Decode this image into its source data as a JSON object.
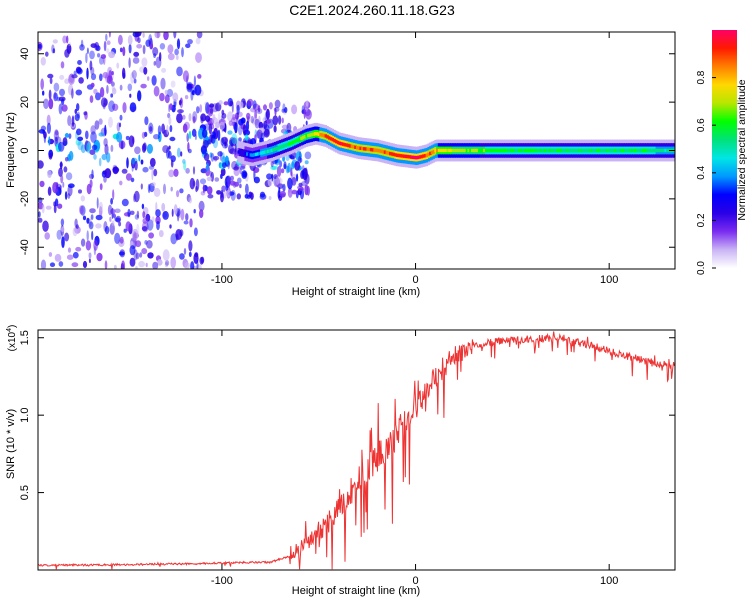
{
  "title": "C2E1.2024.260.11.18.G23",
  "chart_data": [
    {
      "type": "heatmap",
      "xlabel": "Height of straight line (km)",
      "ylabel": "Frequency (Hz)",
      "xlim": [
        -195,
        134
      ],
      "ylim": [
        -49,
        49
      ],
      "xticks": [
        -100,
        0,
        100
      ],
      "yticks": [
        -40,
        -20,
        0,
        20,
        40
      ],
      "ytick_labels": [
        "-40",
        "-20",
        "0",
        "20",
        "40"
      ],
      "xtick_labels": [
        "-100",
        "0",
        "100"
      ],
      "colorbar": {
        "label": "Normalized spectral amplitude",
        "range": [
          0.0,
          1.0
        ],
        "ticks": [
          "0.0",
          "0.2",
          "0.4",
          "0.6",
          "0.8"
        ],
        "colormap": [
          "#ffffff",
          "#c9b3f5",
          "#7a2cf0",
          "#2a00e6",
          "#0000ff",
          "#0099ff",
          "#00e5e5",
          "#00e27a",
          "#00ff00",
          "#b8e600",
          "#ffd800",
          "#ff7f00",
          "#ff1a00",
          "#ff0066"
        ]
      },
      "trace": {
        "x": [
          -195,
          -150,
          -120,
          -95,
          -85,
          -75,
          -65,
          -57,
          -52,
          -47,
          -40,
          -30,
          -20,
          -10,
          0,
          5,
          10,
          20,
          40,
          60,
          80,
          100,
          120,
          134
        ],
        "freq": [
          0,
          0,
          0,
          0,
          -2,
          0,
          3,
          6,
          7,
          6,
          3,
          1,
          0,
          -2,
          -3,
          -2,
          0,
          0,
          0,
          0,
          0,
          0,
          0,
          0
        ],
        "amplitude": [
          0.15,
          0.15,
          0.15,
          0.2,
          0.4,
          0.5,
          0.6,
          0.65,
          0.75,
          0.88,
          0.92,
          0.85,
          0.85,
          0.9,
          0.95,
          0.9,
          0.8,
          0.7,
          0.6,
          0.58,
          0.56,
          0.55,
          0.55,
          0.5
        ]
      },
      "noise_region": [
        -195,
        -80
      ]
    },
    {
      "type": "line",
      "xlabel": "Height of straight line (km)",
      "ylabel": "SNR (10 * v/v)",
      "multiplier_label": "(x10",
      "multiplier_exp": "4",
      "multiplier_close": ")",
      "xlim": [
        -195,
        134
      ],
      "ylim": [
        0,
        1.55
      ],
      "xticks": [
        -100,
        0,
        100
      ],
      "xtick_labels": [
        "-100",
        "0",
        "100"
      ],
      "yticks": [
        0.5,
        1.0,
        1.5
      ],
      "ytick_labels": [
        "0.5",
        "1.0",
        "1.5"
      ],
      "color": "#ee3333",
      "envelope": {
        "x": [
          -195,
          -150,
          -120,
          -100,
          -85,
          -75,
          -65,
          -58,
          -50,
          -42,
          -35,
          -25,
          -15,
          -5,
          0,
          10,
          20,
          30,
          45,
          60,
          75,
          90,
          110,
          125,
          134
        ],
        "y": [
          0.03,
          0.035,
          0.04,
          0.045,
          0.05,
          0.05,
          0.09,
          0.15,
          0.25,
          0.35,
          0.48,
          0.65,
          0.8,
          0.95,
          1.05,
          1.25,
          1.38,
          1.45,
          1.48,
          1.49,
          1.5,
          1.45,
          1.38,
          1.33,
          1.32
        ]
      }
    }
  ]
}
